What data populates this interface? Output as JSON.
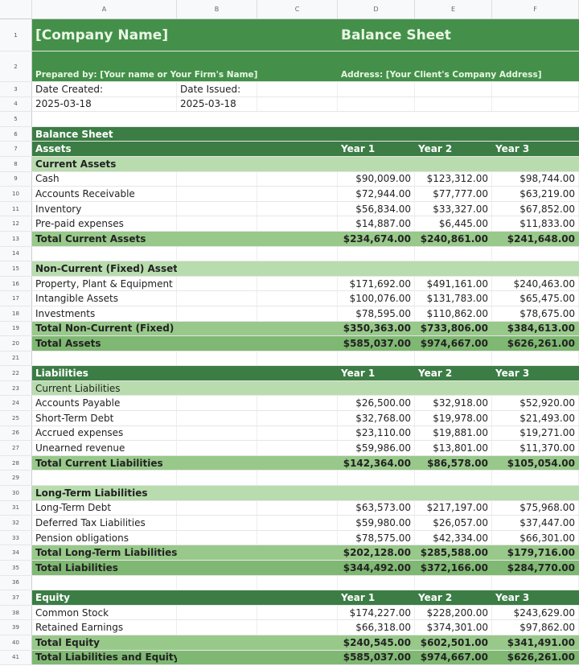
{
  "columns": [
    "A",
    "B",
    "C",
    "D",
    "E",
    "F"
  ],
  "header": {
    "company": "[Company Name]",
    "title": "Balance Sheet",
    "prepared_by": "Prepared by: [Your name or Your Firm's Name]",
    "address": "Address: [Your Client's Company Address]"
  },
  "dates": {
    "created_label": "Date Created:",
    "created": "2025-03-18",
    "issued_label": "Date Issued:",
    "issued": "2025-03-18"
  },
  "rows": [
    {
      "n": 6,
      "type": "dark",
      "label": "Balance Sheet",
      "vals": []
    },
    {
      "n": 7,
      "type": "dark",
      "label": "Assets",
      "vals": [
        "Year 1",
        "Year 2",
        "Year 3"
      ],
      "left": true
    },
    {
      "n": 8,
      "type": "light bold",
      "label": "Current Assets",
      "vals": []
    },
    {
      "n": 9,
      "type": "data",
      "label": "Cash",
      "vals": [
        "$90,009.00",
        "$123,312.00",
        "$98,744.00"
      ]
    },
    {
      "n": 10,
      "type": "data",
      "label": "Accounts Receivable",
      "vals": [
        "$72,944.00",
        "$77,777.00",
        "$63,219.00"
      ]
    },
    {
      "n": 11,
      "type": "data",
      "label": "Inventory",
      "vals": [
        "$56,834.00",
        "$33,327.00",
        "$67,852.00"
      ]
    },
    {
      "n": 12,
      "type": "data",
      "label": "Pre-paid expenses",
      "vals": [
        "$14,887.00",
        "$6,445.00",
        "$11,833.00"
      ]
    },
    {
      "n": 13,
      "type": "total",
      "label": "Total Current Assets",
      "vals": [
        "$234,674.00",
        "$240,861.00",
        "$241,648.00"
      ]
    },
    {
      "n": 14,
      "type": "data",
      "label": "",
      "vals": []
    },
    {
      "n": 15,
      "type": "light bold",
      "label": "Non-Current (Fixed) Assets",
      "vals": []
    },
    {
      "n": 16,
      "type": "data",
      "label": "Property, Plant & Equipment",
      "vals": [
        "$171,692.00",
        "$491,161.00",
        "$240,463.00"
      ]
    },
    {
      "n": 17,
      "type": "data",
      "label": "Intangible Assets",
      "vals": [
        "$100,076.00",
        "$131,783.00",
        "$65,475.00"
      ]
    },
    {
      "n": 18,
      "type": "data",
      "label": "Investments",
      "vals": [
        "$78,595.00",
        "$110,862.00",
        "$78,675.00"
      ]
    },
    {
      "n": 19,
      "type": "total",
      "label": "Total Non-Current (Fixed) Assets",
      "vals": [
        "$350,363.00",
        "$733,806.00",
        "$384,613.00"
      ]
    },
    {
      "n": 20,
      "type": "grand",
      "label": "Total Assets",
      "vals": [
        "$585,037.00",
        "$974,667.00",
        "$626,261.00"
      ]
    },
    {
      "n": 21,
      "type": "data",
      "label": "",
      "vals": []
    },
    {
      "n": 22,
      "type": "dark",
      "label": "Liabilities",
      "vals": [
        "Year 1",
        "Year 2",
        "Year 3"
      ],
      "left": true
    },
    {
      "n": 23,
      "type": "light",
      "label": "Current Liabilities",
      "vals": []
    },
    {
      "n": 24,
      "type": "data",
      "label": "Accounts Payable",
      "vals": [
        "$26,500.00",
        "$32,918.00",
        "$52,920.00"
      ]
    },
    {
      "n": 25,
      "type": "data",
      "label": "Short-Term Debt",
      "vals": [
        "$32,768.00",
        "$19,978.00",
        "$21,493.00"
      ]
    },
    {
      "n": 26,
      "type": "data",
      "label": "Accrued expenses",
      "vals": [
        "$23,110.00",
        "$19,881.00",
        "$19,271.00"
      ]
    },
    {
      "n": 27,
      "type": "data",
      "label": "Unearned revenue",
      "vals": [
        "$59,986.00",
        "$13,801.00",
        "$11,370.00"
      ]
    },
    {
      "n": 28,
      "type": "total",
      "label": "Total Current Liabilities",
      "vals": [
        "$142,364.00",
        "$86,578.00",
        "$105,054.00"
      ]
    },
    {
      "n": 29,
      "type": "data",
      "label": "",
      "vals": []
    },
    {
      "n": 30,
      "type": "light bold",
      "label": "Long-Term Liabilities",
      "vals": []
    },
    {
      "n": 31,
      "type": "data",
      "label": "Long-Term Debt",
      "vals": [
        "$63,573.00",
        "$217,197.00",
        "$75,968.00"
      ]
    },
    {
      "n": 32,
      "type": "data",
      "label": "Deferred Tax Liabilities",
      "vals": [
        "$59,980.00",
        "$26,057.00",
        "$37,447.00"
      ]
    },
    {
      "n": 33,
      "type": "data",
      "label": "Pension obligations",
      "vals": [
        "$78,575.00",
        "$42,334.00",
        "$66,301.00"
      ]
    },
    {
      "n": 34,
      "type": "total",
      "label": "Total Long-Term Liabilities",
      "vals": [
        "$202,128.00",
        "$285,588.00",
        "$179,716.00"
      ]
    },
    {
      "n": 35,
      "type": "grand",
      "label": "Total Liabilities",
      "vals": [
        "$344,492.00",
        "$372,166.00",
        "$284,770.00"
      ]
    },
    {
      "n": 36,
      "type": "data",
      "label": "",
      "vals": []
    },
    {
      "n": 37,
      "type": "dark",
      "label": "Equity",
      "vals": [
        "Year 1",
        "Year 2",
        "Year 3"
      ],
      "left": true
    },
    {
      "n": 38,
      "type": "data",
      "label": "Common Stock",
      "vals": [
        "$174,227.00",
        "$228,200.00",
        "$243,629.00"
      ]
    },
    {
      "n": 39,
      "type": "data",
      "label": "Retained Earnings",
      "vals": [
        "$66,318.00",
        "$374,301.00",
        "$97,862.00"
      ]
    },
    {
      "n": 40,
      "type": "total",
      "label": "Total Equity",
      "vals": [
        "$240,545.00",
        "$602,501.00",
        "$341,491.00"
      ]
    },
    {
      "n": 41,
      "type": "grand",
      "label": "Total Liabilities and Equity",
      "vals": [
        "$585,037.00",
        "$974,667.00",
        "$626,261.00"
      ]
    }
  ],
  "colors": {
    "dark": "#3b7d45",
    "title": "#44904a",
    "light": "#b8dcae",
    "total": "#98c98a",
    "grand": "#7fb872"
  }
}
